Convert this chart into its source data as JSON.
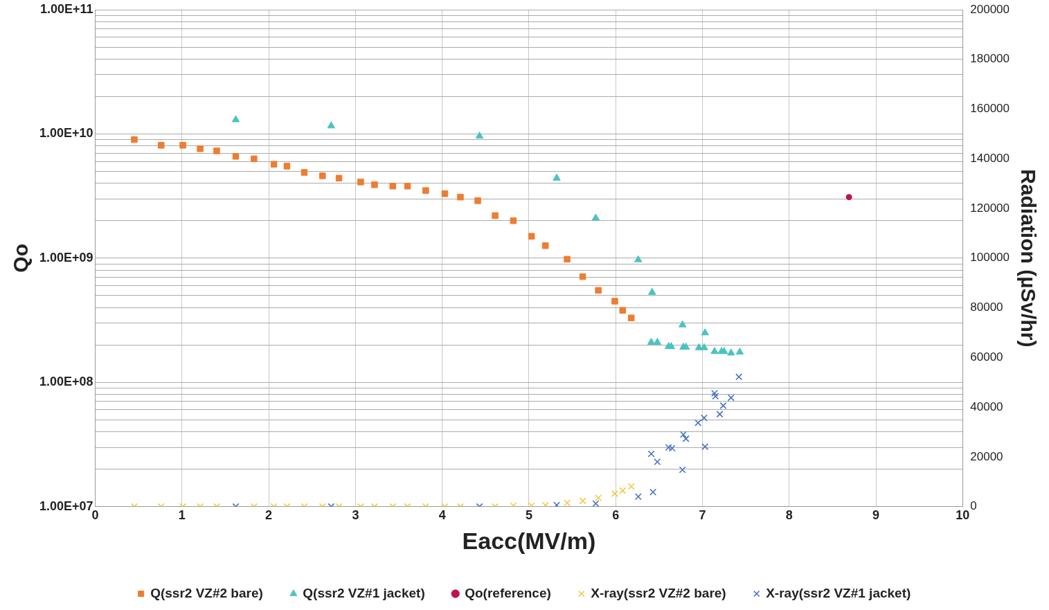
{
  "chart_data": {
    "type": "scatter",
    "xlabel": "Eacc(MV/m)",
    "ylabel": "Qo",
    "y2label": "Radiation (µSv/hr)",
    "log": "y",
    "grid": true,
    "legend": "bottom",
    "xlim": [
      0,
      10
    ],
    "xticks": [
      0,
      1,
      2,
      3,
      4,
      5,
      6,
      7,
      8,
      9,
      10
    ],
    "ylim": [
      10000000,
      100000000000
    ],
    "yticks": [
      {
        "value": 10000000,
        "label": "1.00E+07"
      },
      {
        "value": 20000000,
        "label": null
      },
      {
        "value": 30000000,
        "label": null
      },
      {
        "value": 40000000,
        "label": null
      },
      {
        "value": 50000000,
        "label": null
      },
      {
        "value": 60000000,
        "label": null
      },
      {
        "value": 70000000,
        "label": null
      },
      {
        "value": 80000000,
        "label": null
      },
      {
        "value": 90000000,
        "label": null
      },
      {
        "value": 100000000,
        "label": "1.00E+08"
      },
      {
        "value": 200000000,
        "label": null
      },
      {
        "value": 300000000,
        "label": null
      },
      {
        "value": 400000000,
        "label": null
      },
      {
        "value": 500000000,
        "label": null
      },
      {
        "value": 600000000,
        "label": null
      },
      {
        "value": 700000000,
        "label": null
      },
      {
        "value": 800000000,
        "label": null
      },
      {
        "value": 900000000,
        "label": null
      },
      {
        "value": 1000000000,
        "label": "1.00E+09"
      },
      {
        "value": 2000000000,
        "label": null
      },
      {
        "value": 3000000000,
        "label": null
      },
      {
        "value": 4000000000,
        "label": null
      },
      {
        "value": 5000000000,
        "label": null
      },
      {
        "value": 6000000000,
        "label": null
      },
      {
        "value": 7000000000,
        "label": null
      },
      {
        "value": 8000000000,
        "label": null
      },
      {
        "value": 9000000000,
        "label": null
      },
      {
        "value": 10000000000,
        "label": "1.00E+10"
      },
      {
        "value": 20000000000,
        "label": null
      },
      {
        "value": 30000000000,
        "label": null
      },
      {
        "value": 40000000000,
        "label": null
      },
      {
        "value": 50000000000,
        "label": null
      },
      {
        "value": 60000000000,
        "label": null
      },
      {
        "value": 70000000000,
        "label": null
      },
      {
        "value": 80000000000,
        "label": null
      },
      {
        "value": 90000000000,
        "label": null
      },
      {
        "value": 100000000000,
        "label": "1.00E+11"
      }
    ],
    "y2lim": [
      0,
      200000
    ],
    "y2ticks": [
      0,
      20000,
      40000,
      60000,
      80000,
      100000,
      120000,
      140000,
      160000,
      180000,
      200000
    ],
    "series": [
      {
        "name": "Q(ssr2 VZ#2 bare)",
        "color": "#ed7d31",
        "marker": "square",
        "x": [
          0.45,
          0.76,
          1.01,
          1.21,
          1.4,
          1.62,
          1.83,
          2.06,
          2.21,
          2.41,
          2.62,
          2.81,
          3.06,
          3.22,
          3.43,
          3.6,
          3.81,
          4.03,
          4.21,
          4.41,
          4.61,
          4.82,
          5.03,
          5.19,
          5.44,
          5.62,
          5.8,
          5.99,
          6.08,
          6.18
        ],
        "values": [
          9000000000.0,
          8100000000.0,
          8100000000.0,
          7600000000.0,
          7300000000.0,
          6600000000.0,
          6300000000.0,
          5700000000.0,
          5500000000.0,
          4900000000.0,
          4600000000.0,
          4400000000.0,
          4100000000.0,
          3900000000.0,
          3800000000.0,
          3800000000.0,
          3500000000.0,
          3300000000.0,
          3100000000.0,
          2900000000.0,
          2200000000.0,
          2000000000.0,
          1500000000.0,
          1260000000.0,
          980000000.0,
          710000000.0,
          550000000.0,
          450000000.0,
          380000000.0,
          330000000.0
        ]
      },
      {
        "name": "Q(ssr2 VZ#1 jacket)",
        "color": "#4bc4c0",
        "marker": "triangle",
        "x": [
          1.62,
          2.72,
          4.43,
          5.32,
          5.77,
          6.26,
          6.42,
          6.77,
          7.03,
          6.41,
          6.48,
          6.61,
          6.64,
          6.78,
          6.81,
          6.96,
          7.02,
          7.14,
          7.22,
          7.25,
          7.33,
          7.43
        ],
        "values": [
          13000000000.0,
          11600000000.0,
          9600000000.0,
          4400000000.0,
          2100000000.0,
          970000000.0,
          530000000.0,
          290000000.0,
          250000000.0,
          210000000.0,
          210000000.0,
          194000000.0,
          194000000.0,
          192000000.0,
          192000000.0,
          190000000.0,
          190000000.0,
          177000000.0,
          177000000.0,
          177000000.0,
          172000000.0,
          175000000.0
        ]
      },
      {
        "name": "Qo(reference)",
        "color": "#c0134a",
        "marker": "circle",
        "x": [
          8.69
        ],
        "values": [
          3100000000.0
        ]
      },
      {
        "name": "X-ray(ssr2 VZ#2 bare)",
        "color": "#f5c842",
        "marker": "cross",
        "axis": "y2",
        "x": [
          0.45,
          0.76,
          1.01,
          1.21,
          1.4,
          1.83,
          2.06,
          2.21,
          2.41,
          2.62,
          2.81,
          3.06,
          3.22,
          3.43,
          3.6,
          3.81,
          4.03,
          4.21,
          4.61,
          4.82,
          5.03,
          5.19,
          5.44,
          5.62,
          5.8,
          5.99,
          6.08,
          6.18
        ],
        "values": [
          0,
          0,
          0,
          0,
          0,
          0,
          0,
          0,
          0,
          0,
          0,
          0,
          0,
          0,
          0,
          0,
          0,
          0,
          0,
          300,
          300,
          500,
          1500,
          2300,
          3500,
          5200,
          6400,
          8100
        ]
      },
      {
        "name": "X-ray(ssr2 VZ#1 jacket)",
        "color": "#4472c4",
        "marker": "cross",
        "axis": "y2",
        "x": [
          1.62,
          2.72,
          4.43,
          5.32,
          5.77,
          6.26,
          6.43,
          6.41,
          6.48,
          6.61,
          6.65,
          6.77,
          6.78,
          6.81,
          6.95,
          7.02,
          7.03,
          7.14,
          7.15,
          7.2,
          7.24,
          7.33,
          7.42
        ],
        "values": [
          0,
          0,
          0,
          600,
          1200,
          4000,
          5800,
          21200,
          18000,
          23800,
          23500,
          14800,
          29000,
          27300,
          33700,
          35700,
          24100,
          45600,
          44400,
          37200,
          40600,
          43800,
          52200
        ]
      }
    ]
  }
}
